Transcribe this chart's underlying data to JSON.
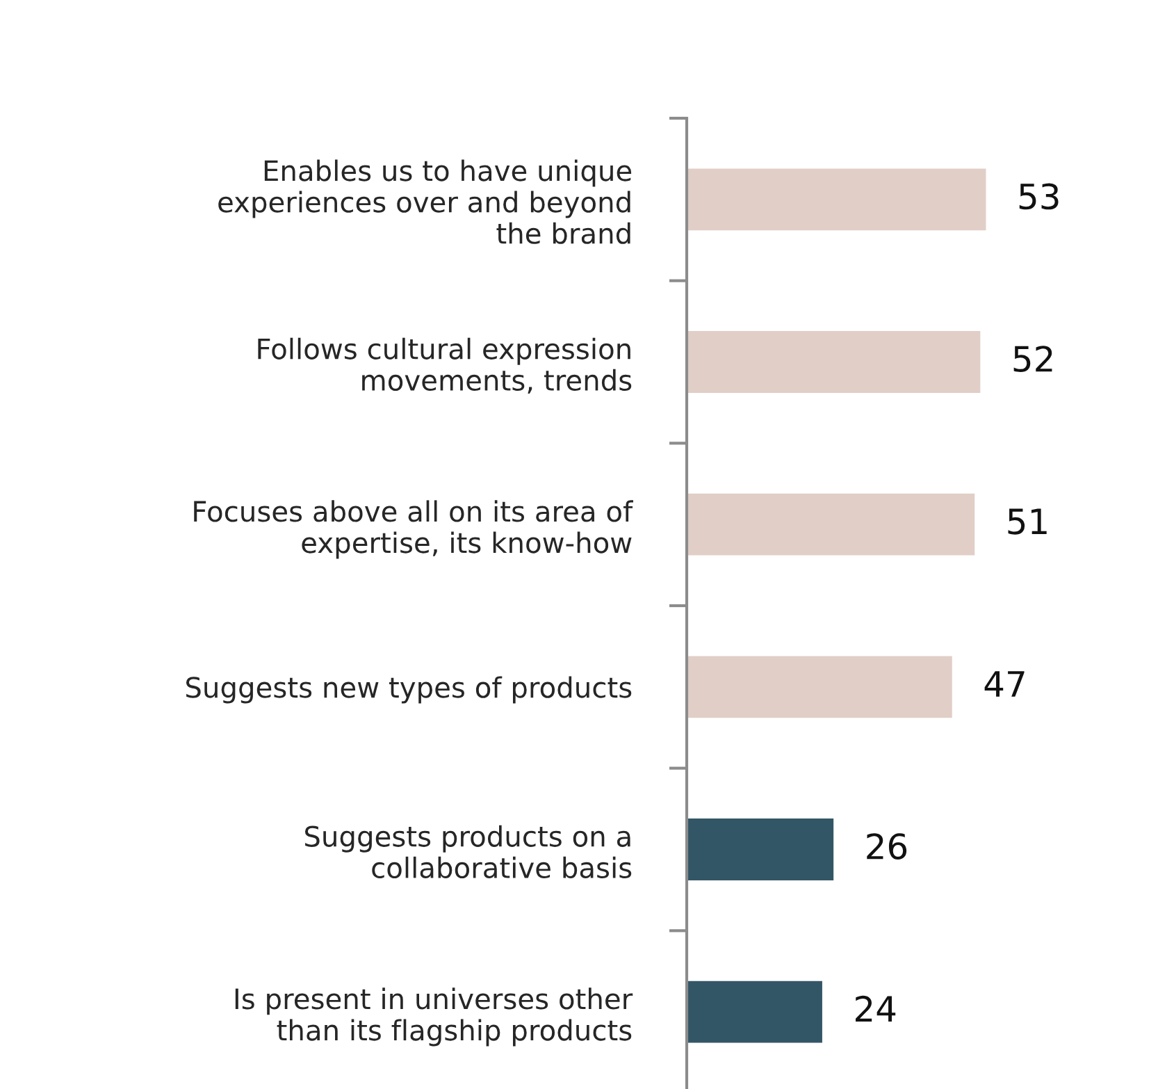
{
  "chart_data": {
    "type": "bar",
    "orientation": "horizontal",
    "categories": [
      "Enables us to have unique\nexperiences over and beyond\nthe brand",
      "Follows cultural expression\nmovements, trends",
      "Focuses above all on its area of\nexpertise, its know-how",
      "Suggests new types of products",
      "Suggests products on a\ncollaborative basis",
      "Is present in universes other\nthan its flagship products"
    ],
    "values": [
      53,
      52,
      51,
      47,
      26,
      24
    ],
    "colors": [
      "#e0cec7",
      "#e0cec7",
      "#e0cec7",
      "#e0cec7",
      "#335667",
      "#335667"
    ],
    "tick_labels": "y",
    "data_labels": true,
    "grid": false
  }
}
